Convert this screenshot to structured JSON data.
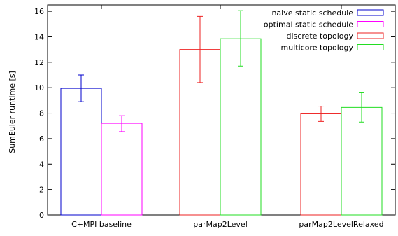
{
  "chart_data": {
    "type": "bar",
    "title": "",
    "xlabel": "",
    "ylabel": "SumEuler runtime [s]",
    "ylim": [
      0,
      16.5
    ],
    "yticks": [
      0,
      2,
      4,
      6,
      8,
      10,
      12,
      14,
      16
    ],
    "grid": false,
    "legend_position": "top-right",
    "categories": [
      "C+MPI baseline",
      "parMap2Level",
      "parMap2LevelRelaxed"
    ],
    "series": [
      {
        "name": "naive static schedule",
        "color": "#0000cc",
        "values": [
          9.95,
          null,
          null
        ],
        "error_low": [
          8.9,
          null,
          null
        ],
        "error_high": [
          11.0,
          null,
          null
        ]
      },
      {
        "name": "optimal static schedule",
        "color": "#ff00ff",
        "values": [
          7.2,
          null,
          null
        ],
        "error_low": [
          6.55,
          null,
          null
        ],
        "error_high": [
          7.8,
          null,
          null
        ]
      },
      {
        "name": "discrete topology",
        "color": "#ee2222",
        "values": [
          null,
          13.0,
          7.95
        ],
        "error_low": [
          null,
          10.4,
          7.35
        ],
        "error_high": [
          null,
          15.6,
          8.55
        ]
      },
      {
        "name": "multicore topology",
        "color": "#22dd22",
        "values": [
          null,
          13.85,
          8.45
        ],
        "error_low": [
          null,
          11.7,
          7.3
        ],
        "error_high": [
          null,
          16.05,
          9.6
        ]
      }
    ]
  }
}
